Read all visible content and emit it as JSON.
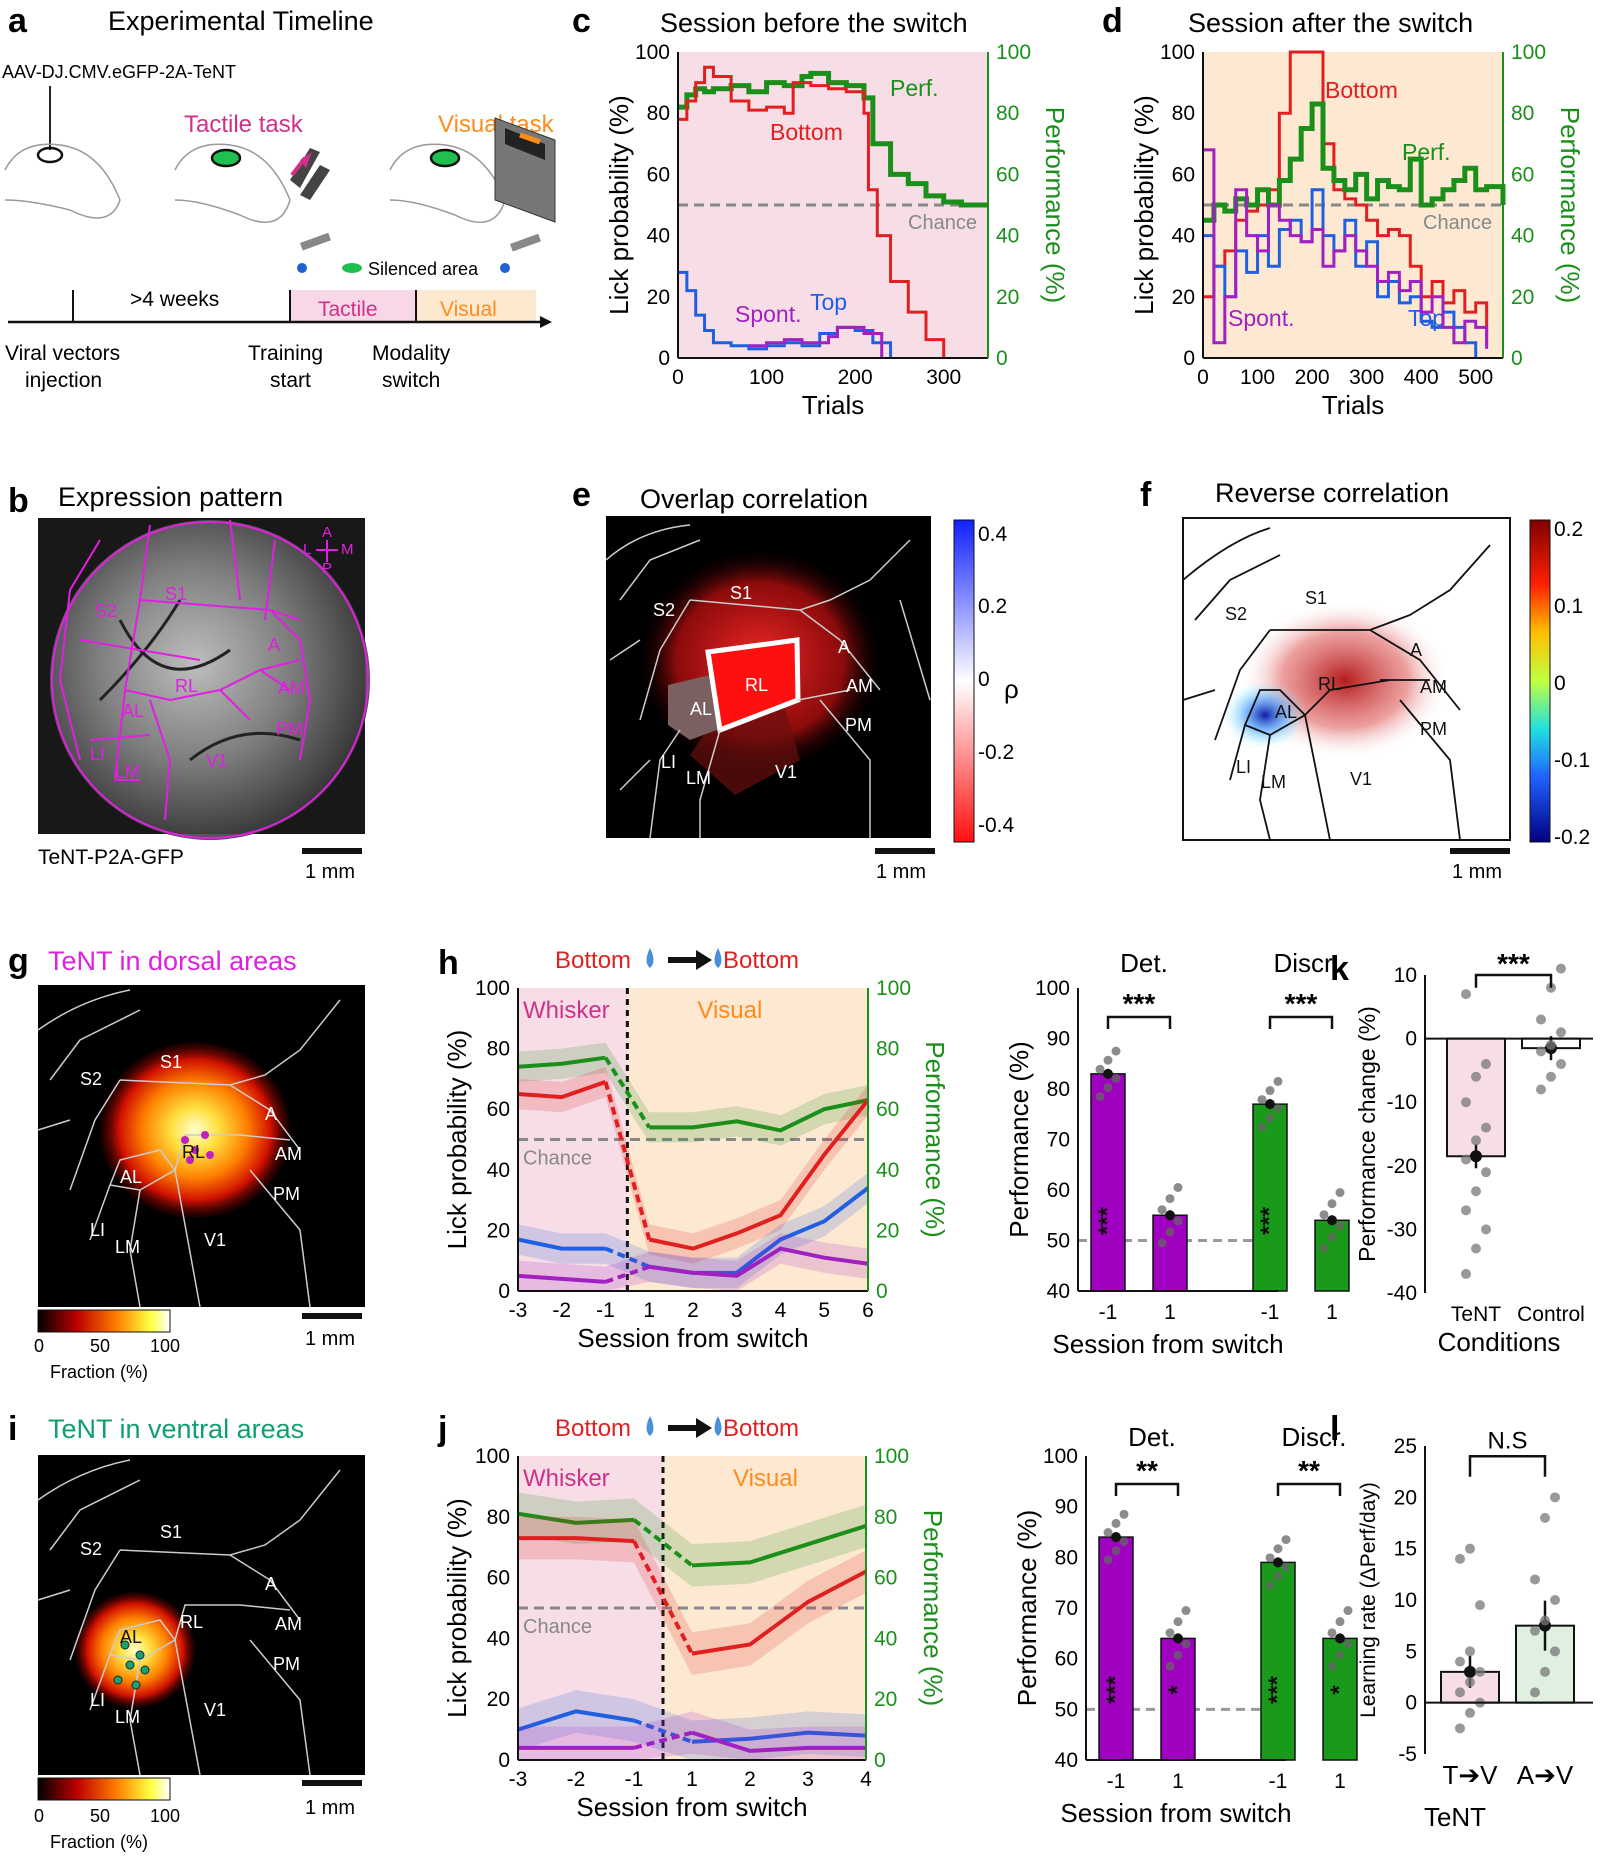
{
  "panels": {
    "a": {
      "label": "a",
      "title": "Experimental Timeline",
      "virus": "AAV-DJ.CMV.eGFP-2A-TeNT",
      "tactile_task": "Tactile task",
      "visual_task": "Visual task",
      "silenced": "Silenced area",
      "weeks": ">4 weeks",
      "tactile": "Tactile",
      "visual": "Visual",
      "milestones": [
        "Viral vectors",
        "injection",
        "Training",
        "start",
        "Modality",
        "switch"
      ]
    },
    "b": {
      "label": "b",
      "title": "Expression pattern",
      "caption": "TeNT-P2A-GFP",
      "scale": "1 mm",
      "areas": [
        "S2",
        "S1",
        "A",
        "RL",
        "AL",
        "AM",
        "PM",
        "LI",
        "LM",
        "V1"
      ],
      "compass": [
        "A",
        "L",
        "M",
        "P"
      ]
    },
    "c": {
      "label": "c",
      "title": "Session before the switch"
    },
    "d": {
      "label": "d",
      "title": "Session after the switch"
    },
    "e": {
      "label": "e",
      "title": "Overlap correlation",
      "scale": "1 mm",
      "rho": "ρ",
      "cbar_ticks": [
        "0.4",
        "0.2",
        "0",
        "-0.2",
        "-0.4"
      ],
      "areas": [
        "S2",
        "S1",
        "A",
        "RL",
        "AL",
        "AM",
        "PM",
        "LI",
        "LM",
        "V1"
      ]
    },
    "f": {
      "label": "f",
      "title": "Reverse correlation",
      "scale": "1 mm",
      "cbar_ticks": [
        "0.2",
        "0.1",
        "0",
        "-0.1",
        "-0.2"
      ],
      "areas": [
        "S2",
        "S1",
        "A",
        "RL",
        "AL",
        "AM",
        "PM",
        "LI",
        "LM",
        "V1"
      ]
    },
    "g": {
      "label": "g",
      "title": "TeNT in dorsal areas",
      "scale": "1 mm",
      "cbar_ticks": [
        "0",
        "50",
        "100"
      ],
      "cbar_label": "Fraction (%)",
      "areas": [
        "S2",
        "S1",
        "A",
        "RL",
        "AL",
        "AM",
        "PM",
        "LI",
        "LM",
        "V1"
      ]
    },
    "h": {
      "label": "h",
      "bottom1": "Bottom",
      "bottom2": "Bottom",
      "whisker": "Whisker",
      "visual": "Visual",
      "chance": "Chance"
    },
    "i": {
      "label": "i",
      "title": "TeNT in ventral areas",
      "scale": "1 mm",
      "cbar_ticks": [
        "0",
        "50",
        "100"
      ],
      "cbar_label": "Fraction (%)",
      "areas": [
        "S2",
        "S1",
        "A",
        "RL",
        "AL",
        "AM",
        "PM",
        "LI",
        "LM",
        "V1"
      ]
    },
    "j": {
      "label": "j",
      "bottom1": "Bottom",
      "bottom2": "Bottom",
      "whisker": "Whisker",
      "visual": "Visual",
      "chance": "Chance"
    },
    "k": {
      "label": "k",
      "ylabel": "Performance change (%)",
      "xlabel": "Conditions",
      "sig": "***"
    },
    "l": {
      "label": "l",
      "ylabel": "Learning rate (ΔPerf/day)",
      "sig": "N.S",
      "tent": "TeNT"
    }
  },
  "chart_data": [
    {
      "id": "c",
      "type": "line",
      "title": "Session before the switch",
      "xlabel": "Trials",
      "ylabel": "Lick probability (%)",
      "y2label": "Performance (%)",
      "xlim": [
        0,
        350
      ],
      "ylim": [
        0,
        100
      ],
      "xticks": [
        "0",
        "100",
        "200",
        "300"
      ],
      "yticks": [
        "0",
        "20",
        "40",
        "60",
        "80",
        "100"
      ],
      "chance": 50,
      "chance_label": "Chance",
      "series": [
        {
          "name": "Perf.",
          "color": "#1a8f1a",
          "x": [
            0,
            10,
            20,
            30,
            40,
            60,
            80,
            100,
            120,
            140,
            150,
            170,
            190,
            200,
            210,
            220,
            240,
            260,
            280,
            300,
            320,
            350
          ],
          "y": [
            82,
            86,
            88,
            87,
            88,
            89,
            87,
            90,
            89,
            92,
            93,
            90,
            89,
            89,
            85,
            70,
            60,
            57,
            53,
            51,
            50,
            50
          ]
        },
        {
          "name": "Bottom",
          "color": "#e02020",
          "x": [
            0,
            10,
            20,
            30,
            40,
            60,
            80,
            100,
            120,
            130,
            150,
            170,
            190,
            200,
            210,
            215,
            225,
            240,
            260,
            280,
            300
          ],
          "y": [
            78,
            84,
            90,
            95,
            92,
            84,
            81,
            82,
            80,
            90,
            89,
            88,
            87,
            87,
            80,
            55,
            40,
            25,
            15,
            6,
            0
          ]
        },
        {
          "name": "Top",
          "color": "#2060e0",
          "x": [
            0,
            10,
            20,
            30,
            40,
            60,
            80,
            100,
            120,
            140,
            160,
            180,
            200,
            220,
            240
          ],
          "y": [
            28,
            22,
            14,
            9,
            5,
            4,
            3,
            4,
            5,
            4,
            8,
            10,
            9,
            5,
            0
          ]
        },
        {
          "name": "Spont.",
          "color": "#a020c0",
          "x": [
            80,
            100,
            120,
            140,
            170,
            180,
            200,
            210,
            230
          ],
          "y": [
            4,
            5,
            6,
            5,
            7,
            10,
            10,
            8,
            0
          ]
        }
      ]
    },
    {
      "id": "d",
      "type": "line",
      "title": "Session after the switch",
      "xlabel": "Trials",
      "ylabel": "Lick probability (%)",
      "y2label": "Performance (%)",
      "xlim": [
        0,
        550
      ],
      "ylim": [
        0,
        100
      ],
      "xticks": [
        "0",
        "100",
        "200",
        "300",
        "400",
        "500"
      ],
      "yticks": [
        "0",
        "20",
        "40",
        "60",
        "80",
        "100"
      ],
      "chance": 50,
      "chance_label": "Chance",
      "series": [
        {
          "name": "Bottom",
          "color": "#e02020",
          "x": [
            0,
            20,
            40,
            60,
            80,
            100,
            120,
            140,
            160,
            180,
            200,
            220,
            240,
            260,
            280,
            300,
            320,
            340,
            360,
            380,
            400,
            420,
            440,
            460,
            480,
            500,
            520
          ],
          "y": [
            20,
            30,
            35,
            45,
            48,
            50,
            55,
            80,
            100,
            100,
            100,
            70,
            55,
            52,
            50,
            45,
            40,
            42,
            40,
            30,
            20,
            25,
            18,
            22,
            15,
            18,
            5
          ]
        },
        {
          "name": "Perf.",
          "color": "#1a8f1a",
          "x": [
            0,
            20,
            40,
            60,
            80,
            100,
            120,
            140,
            160,
            180,
            200,
            220,
            240,
            260,
            280,
            300,
            320,
            340,
            360,
            380,
            400,
            420,
            440,
            460,
            480,
            500,
            520,
            550
          ],
          "y": [
            45,
            50,
            48,
            52,
            50,
            55,
            50,
            58,
            65,
            75,
            83,
            62,
            58,
            55,
            60,
            52,
            58,
            56,
            55,
            65,
            50,
            52,
            55,
            58,
            62,
            55,
            56,
            50
          ]
        },
        {
          "name": "Top",
          "color": "#2060e0",
          "x": [
            0,
            20,
            40,
            60,
            80,
            100,
            120,
            140,
            160,
            180,
            200,
            220,
            240,
            260,
            280,
            300,
            320,
            340,
            360,
            380,
            400,
            420,
            440,
            460,
            480,
            500
          ],
          "y": [
            40,
            30,
            20,
            35,
            28,
            40,
            30,
            42,
            45,
            38,
            55,
            40,
            35,
            45,
            30,
            38,
            20,
            25,
            18,
            20,
            12,
            10,
            15,
            10,
            5,
            0
          ]
        },
        {
          "name": "Spont.",
          "color": "#a020c0",
          "x": [
            0,
            20,
            40,
            60,
            80,
            100,
            120,
            140,
            160,
            180,
            200,
            220,
            240,
            260,
            280,
            300,
            320,
            340,
            360,
            380,
            400,
            420,
            440,
            460,
            480,
            500,
            520
          ],
          "y": [
            68,
            5,
            20,
            55,
            40,
            35,
            50,
            45,
            40,
            38,
            42,
            30,
            35,
            40,
            35,
            30,
            25,
            28,
            22,
            25,
            15,
            20,
            10,
            5,
            12,
            10,
            3
          ]
        }
      ]
    },
    {
      "id": "h",
      "type": "line",
      "xlabel": "Session from switch",
      "ylabel": "Lick probability (%)",
      "y2label": "Performance (%)",
      "xticks": [
        "-3",
        "-2",
        "-1",
        "1",
        "2",
        "3",
        "4",
        "5",
        "6"
      ],
      "yticks": [
        "0",
        "20",
        "40",
        "60",
        "80",
        "100"
      ],
      "ylim": [
        0,
        100
      ],
      "series": [
        {
          "name": "Performance",
          "color": "#1a8f1a",
          "values": [
            74,
            75,
            77,
            54,
            54,
            56,
            53,
            60,
            63
          ]
        },
        {
          "name": "Bottom",
          "color": "#e02020",
          "values": [
            65,
            64,
            69,
            17,
            14,
            19,
            25,
            45,
            63
          ]
        },
        {
          "name": "Top",
          "color": "#2060e0",
          "values": [
            17,
            14,
            14,
            8,
            6,
            6,
            17,
            23,
            34
          ]
        },
        {
          "name": "Spont.",
          "color": "#a020c0",
          "values": [
            5,
            4,
            3,
            8,
            6,
            5,
            14,
            11,
            9
          ]
        }
      ]
    },
    {
      "id": "h-bar",
      "type": "bar",
      "ylabel": "Performance (%)",
      "xlabel": "Session from switch",
      "ylim": [
        40,
        100
      ],
      "yticks": [
        "40",
        "50",
        "60",
        "70",
        "80",
        "90",
        "100"
      ],
      "categories": [
        "-1",
        "1",
        "-1",
        "1"
      ],
      "groups": [
        "Det.",
        "Discr."
      ],
      "values": [
        83,
        55,
        77,
        54
      ],
      "colors": [
        "#a000c0",
        "#a000c0",
        "#1a9a1a",
        "#1a9a1a"
      ],
      "sig": [
        "***",
        "***"
      ],
      "inner": [
        "***",
        "***"
      ]
    },
    {
      "id": "k",
      "type": "bar",
      "ylabel": "Performance change (%)",
      "xlabel": "Conditions",
      "categories": [
        "TeNT",
        "Control"
      ],
      "values": [
        -18.5,
        -1.5
      ],
      "ylim": [
        -40,
        10
      ],
      "yticks": [
        "10",
        "0",
        "-10",
        "-20",
        "-30",
        "-40"
      ]
    },
    {
      "id": "j",
      "type": "line",
      "xlabel": "Session from switch",
      "ylabel": "Lick probability (%)",
      "y2label": "Performance (%)",
      "xticks": [
        "-3",
        "-2",
        "-1",
        "1",
        "2",
        "3",
        "4"
      ],
      "yticks": [
        "0",
        "20",
        "40",
        "60",
        "80",
        "100"
      ],
      "ylim": [
        0,
        100
      ],
      "series": [
        {
          "name": "Performance",
          "color": "#1a8f1a",
          "values": [
            81,
            78,
            79,
            64,
            65,
            71,
            77
          ]
        },
        {
          "name": "Bottom",
          "color": "#e02020",
          "values": [
            73,
            73,
            72,
            35,
            38,
            52,
            62
          ]
        },
        {
          "name": "Top",
          "color": "#2060e0",
          "values": [
            10,
            16,
            13,
            6,
            7,
            9,
            8
          ]
        },
        {
          "name": "Spont.",
          "color": "#a020c0",
          "values": [
            4,
            4,
            4,
            9,
            3,
            4,
            4
          ]
        }
      ]
    },
    {
      "id": "j-bar",
      "type": "bar",
      "ylabel": "Performance (%)",
      "xlabel": "Session from switch",
      "ylim": [
        40,
        100
      ],
      "yticks": [
        "40",
        "50",
        "60",
        "70",
        "80",
        "90",
        "100"
      ],
      "categories": [
        "-1",
        "1",
        "-1",
        "1"
      ],
      "groups": [
        "Det.",
        "Discr."
      ],
      "values": [
        84,
        64,
        79,
        64
      ],
      "colors": [
        "#a000c0",
        "#a000c0",
        "#1a9a1a",
        "#1a9a1a"
      ],
      "sig": [
        "**",
        "**"
      ],
      "inner": [
        "***",
        "*",
        "***",
        "*"
      ]
    },
    {
      "id": "l",
      "type": "bar",
      "ylabel": "Learning rate (ΔPerf/day)",
      "categories": [
        "T➔V",
        "A➔V"
      ],
      "group_label": "TeNT",
      "values": [
        3,
        7.5
      ],
      "ylim": [
        -5,
        25
      ],
      "yticks": [
        "25",
        "20",
        "15",
        "10",
        "5",
        "0",
        "-5"
      ]
    }
  ]
}
